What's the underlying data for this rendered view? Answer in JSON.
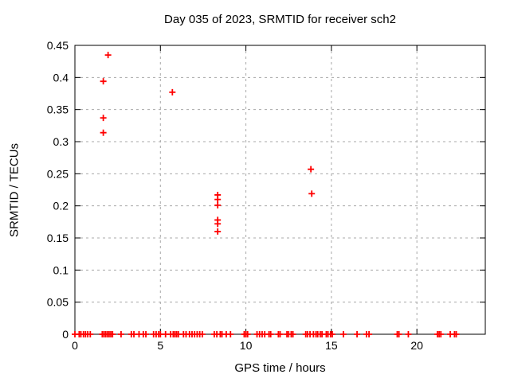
{
  "title": "Day 035 of 2023, SRMTID for receiver sch2",
  "colors": {
    "marker": "#ff0000",
    "grid": "#a8a8a8",
    "axis": "#000000",
    "background": "#ffffff"
  },
  "chart_data": {
    "type": "scatter",
    "title": "Day 035 of 2023, SRMTID for receiver sch2",
    "xlabel": "GPS time / hours",
    "ylabel": "SRMTID / TECUs",
    "xlim": [
      0,
      24
    ],
    "ylim": [
      0,
      0.45
    ],
    "xtick_values": [
      0,
      5,
      10,
      15,
      20
    ],
    "xtick_labels": [
      "0",
      "5",
      "10",
      "15",
      "20"
    ],
    "ytick_values": [
      0,
      0.05,
      0.1,
      0.15,
      0.2,
      0.25,
      0.3,
      0.35,
      0.4,
      0.45
    ],
    "ytick_labels": [
      "0",
      "0.05",
      "0.1",
      "0.15",
      "0.2",
      "0.25",
      "0.3",
      "0.35",
      "0.4",
      "0.45"
    ],
    "grid": "dashed",
    "legend": "none",
    "marker": "plus",
    "series": [
      {
        "name": "SRMTID",
        "color": "#ff0000",
        "points": [
          [
            1.94,
            0.435
          ],
          [
            1.66,
            0.394
          ],
          [
            1.66,
            0.337
          ],
          [
            1.66,
            0.314
          ],
          [
            5.7,
            0.377
          ],
          [
            8.35,
            0.217
          ],
          [
            8.35,
            0.21
          ],
          [
            8.35,
            0.201
          ],
          [
            8.35,
            0.178
          ],
          [
            8.35,
            0.172
          ],
          [
            8.35,
            0.16
          ],
          [
            13.8,
            0.257
          ],
          [
            13.85,
            0.219
          ]
        ],
        "baseline_y": 0,
        "baseline_x": [
          0.0,
          0.25,
          0.35,
          0.5,
          0.62,
          0.75,
          0.9,
          1.6,
          1.7,
          1.8,
          1.9,
          2.0,
          2.1,
          2.2,
          2.7,
          3.3,
          3.45,
          3.75,
          4.0,
          4.15,
          4.6,
          4.75,
          4.9,
          5.0,
          5.3,
          5.6,
          5.75,
          5.85,
          5.95,
          6.05,
          6.35,
          6.5,
          6.7,
          6.85,
          7.0,
          7.15,
          7.3,
          7.45,
          8.15,
          8.3,
          8.5,
          8.6,
          8.85,
          9.1,
          9.9,
          10.0,
          10.1,
          10.65,
          10.8,
          10.95,
          11.1,
          11.35,
          11.45,
          11.9,
          12.0,
          12.4,
          12.5,
          12.65,
          12.75,
          13.5,
          13.6,
          13.75,
          13.95,
          14.1,
          14.2,
          14.35,
          14.45,
          14.7,
          14.8,
          14.95,
          15.05,
          15.7,
          16.5,
          17.05,
          17.2,
          18.85,
          18.95,
          19.5,
          21.2,
          21.3,
          21.4,
          21.95,
          22.2,
          22.3
        ]
      }
    ]
  }
}
